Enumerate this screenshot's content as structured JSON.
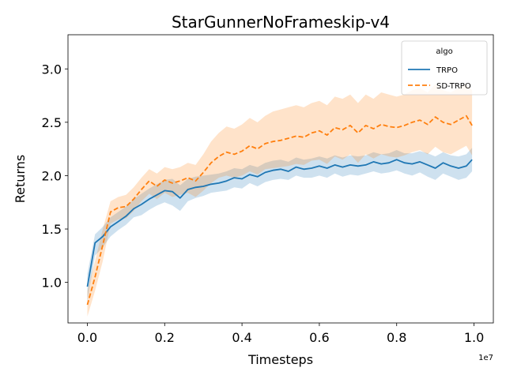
{
  "chart_data": {
    "type": "line",
    "title": "StarGunnerNoFrameskip-v4",
    "xlabel": "Timesteps",
    "ylabel": "Returns",
    "x_offset_text": "1e7",
    "xlim": [
      -0.05,
      1.05
    ],
    "ylim": [
      0.62,
      3.32
    ],
    "x_ticks": [
      0.0,
      0.2,
      0.4,
      0.6,
      0.8,
      1.0
    ],
    "x_tick_labels": [
      "0.0",
      "0.2",
      "0.4",
      "0.6",
      "0.8",
      "1.0"
    ],
    "y_ticks": [
      1.0,
      1.5,
      2.0,
      2.5,
      3.0
    ],
    "y_tick_labels": [
      "1.0",
      "1.5",
      "2.0",
      "2.5",
      "3.0"
    ],
    "grid": false,
    "legend": {
      "title": "algo",
      "placement": "top-right",
      "entries": [
        "TRPO",
        "SD-TRPO"
      ]
    },
    "x": [
      0.0,
      0.02,
      0.04,
      0.06,
      0.08,
      0.1,
      0.12,
      0.14,
      0.16,
      0.18,
      0.2,
      0.22,
      0.24,
      0.26,
      0.28,
      0.3,
      0.32,
      0.34,
      0.36,
      0.38,
      0.4,
      0.42,
      0.44,
      0.46,
      0.48,
      0.5,
      0.52,
      0.54,
      0.56,
      0.58,
      0.6,
      0.62,
      0.64,
      0.66,
      0.68,
      0.7,
      0.72,
      0.74,
      0.76,
      0.78,
      0.8,
      0.82,
      0.84,
      0.86,
      0.88,
      0.9,
      0.92,
      0.94,
      0.96,
      0.98,
      0.995
    ],
    "series": [
      {
        "name": "TRPO",
        "color": "#1f77b4",
        "dash": "solid",
        "values": [
          0.96,
          1.37,
          1.43,
          1.52,
          1.57,
          1.62,
          1.69,
          1.73,
          1.78,
          1.82,
          1.86,
          1.85,
          1.79,
          1.87,
          1.89,
          1.9,
          1.92,
          1.93,
          1.95,
          1.98,
          1.97,
          2.01,
          1.99,
          2.03,
          2.05,
          2.06,
          2.04,
          2.08,
          2.06,
          2.07,
          2.09,
          2.07,
          2.1,
          2.08,
          2.1,
          2.09,
          2.1,
          2.13,
          2.11,
          2.12,
          2.15,
          2.12,
          2.11,
          2.13,
          2.1,
          2.07,
          2.12,
          2.09,
          2.07,
          2.09,
          2.15
        ],
        "lower": [
          0.82,
          1.25,
          1.33,
          1.43,
          1.49,
          1.54,
          1.61,
          1.63,
          1.68,
          1.72,
          1.75,
          1.72,
          1.67,
          1.76,
          1.79,
          1.81,
          1.84,
          1.85,
          1.86,
          1.89,
          1.88,
          1.93,
          1.9,
          1.94,
          1.96,
          1.97,
          1.96,
          2.0,
          1.98,
          1.98,
          2.0,
          1.98,
          2.02,
          1.99,
          2.01,
          2.0,
          2.02,
          2.04,
          2.02,
          2.03,
          2.05,
          2.02,
          2.0,
          2.03,
          1.99,
          1.96,
          2.02,
          1.99,
          1.96,
          1.98,
          2.04
        ],
        "upper": [
          1.08,
          1.45,
          1.52,
          1.61,
          1.66,
          1.71,
          1.78,
          1.83,
          1.88,
          1.92,
          1.96,
          1.97,
          1.91,
          1.97,
          1.99,
          2.0,
          2.01,
          2.02,
          2.04,
          2.07,
          2.06,
          2.1,
          2.08,
          2.12,
          2.14,
          2.15,
          2.13,
          2.17,
          2.15,
          2.16,
          2.18,
          2.16,
          2.19,
          2.17,
          2.19,
          2.18,
          2.19,
          2.22,
          2.2,
          2.21,
          2.24,
          2.21,
          2.21,
          2.23,
          2.21,
          2.18,
          2.22,
          2.19,
          2.18,
          2.2,
          2.26
        ]
      },
      {
        "name": "SD-TRPO",
        "color": "#ff7f0e",
        "dash": "dashed",
        "values": [
          0.79,
          1.05,
          1.35,
          1.66,
          1.7,
          1.71,
          1.78,
          1.87,
          1.95,
          1.9,
          1.96,
          1.93,
          1.95,
          1.98,
          1.95,
          2.03,
          2.12,
          2.18,
          2.22,
          2.2,
          2.23,
          2.28,
          2.25,
          2.3,
          2.32,
          2.33,
          2.35,
          2.37,
          2.36,
          2.4,
          2.42,
          2.38,
          2.45,
          2.43,
          2.47,
          2.4,
          2.47,
          2.44,
          2.48,
          2.46,
          2.45,
          2.47,
          2.5,
          2.52,
          2.48,
          2.55,
          2.5,
          2.48,
          2.52,
          2.56,
          2.47
        ],
        "lower": [
          0.68,
          0.92,
          1.2,
          1.55,
          1.59,
          1.6,
          1.67,
          1.76,
          1.83,
          1.78,
          1.84,
          1.8,
          1.82,
          1.84,
          1.8,
          1.86,
          1.93,
          1.98,
          2.0,
          1.98,
          2.0,
          2.04,
          2.01,
          2.06,
          2.07,
          2.08,
          2.09,
          2.11,
          2.1,
          2.14,
          2.15,
          2.11,
          2.18,
          2.15,
          2.2,
          2.12,
          2.2,
          2.16,
          2.2,
          2.18,
          2.17,
          2.19,
          2.22,
          2.24,
          2.2,
          2.27,
          2.22,
          2.2,
          2.24,
          2.28,
          2.19
        ],
        "upper": [
          0.92,
          1.2,
          1.5,
          1.76,
          1.8,
          1.82,
          1.89,
          1.98,
          2.06,
          2.02,
          2.08,
          2.06,
          2.08,
          2.12,
          2.1,
          2.2,
          2.32,
          2.4,
          2.46,
          2.44,
          2.48,
          2.54,
          2.5,
          2.56,
          2.6,
          2.62,
          2.64,
          2.66,
          2.64,
          2.68,
          2.7,
          2.66,
          2.74,
          2.72,
          2.76,
          2.68,
          2.76,
          2.72,
          2.78,
          2.76,
          2.74,
          2.76,
          2.8,
          2.82,
          2.78,
          2.86,
          2.8,
          2.78,
          2.82,
          2.86,
          2.8
        ]
      }
    ]
  }
}
